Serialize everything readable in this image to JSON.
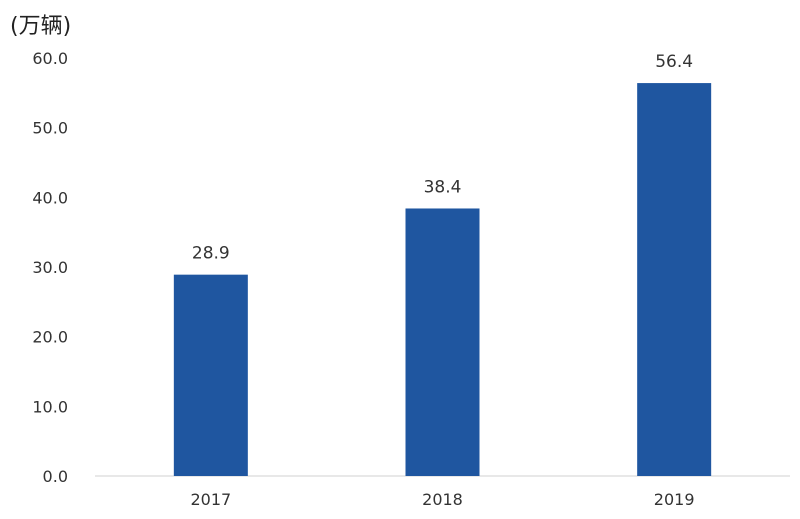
{
  "chart_data": {
    "type": "bar",
    "unit_label": "(万辆)",
    "categories": [
      "2017",
      "2018",
      "2019"
    ],
    "values": [
      28.9,
      38.4,
      56.4
    ],
    "value_labels": [
      "28.9",
      "38.4",
      "56.4"
    ],
    "yticks": [
      "0.0",
      "10.0",
      "20.0",
      "30.0",
      "40.0",
      "50.0",
      "60.0"
    ],
    "ylim": [
      0,
      60
    ],
    "grid": false,
    "legend": "none",
    "bar_color": "#1f56a0"
  }
}
